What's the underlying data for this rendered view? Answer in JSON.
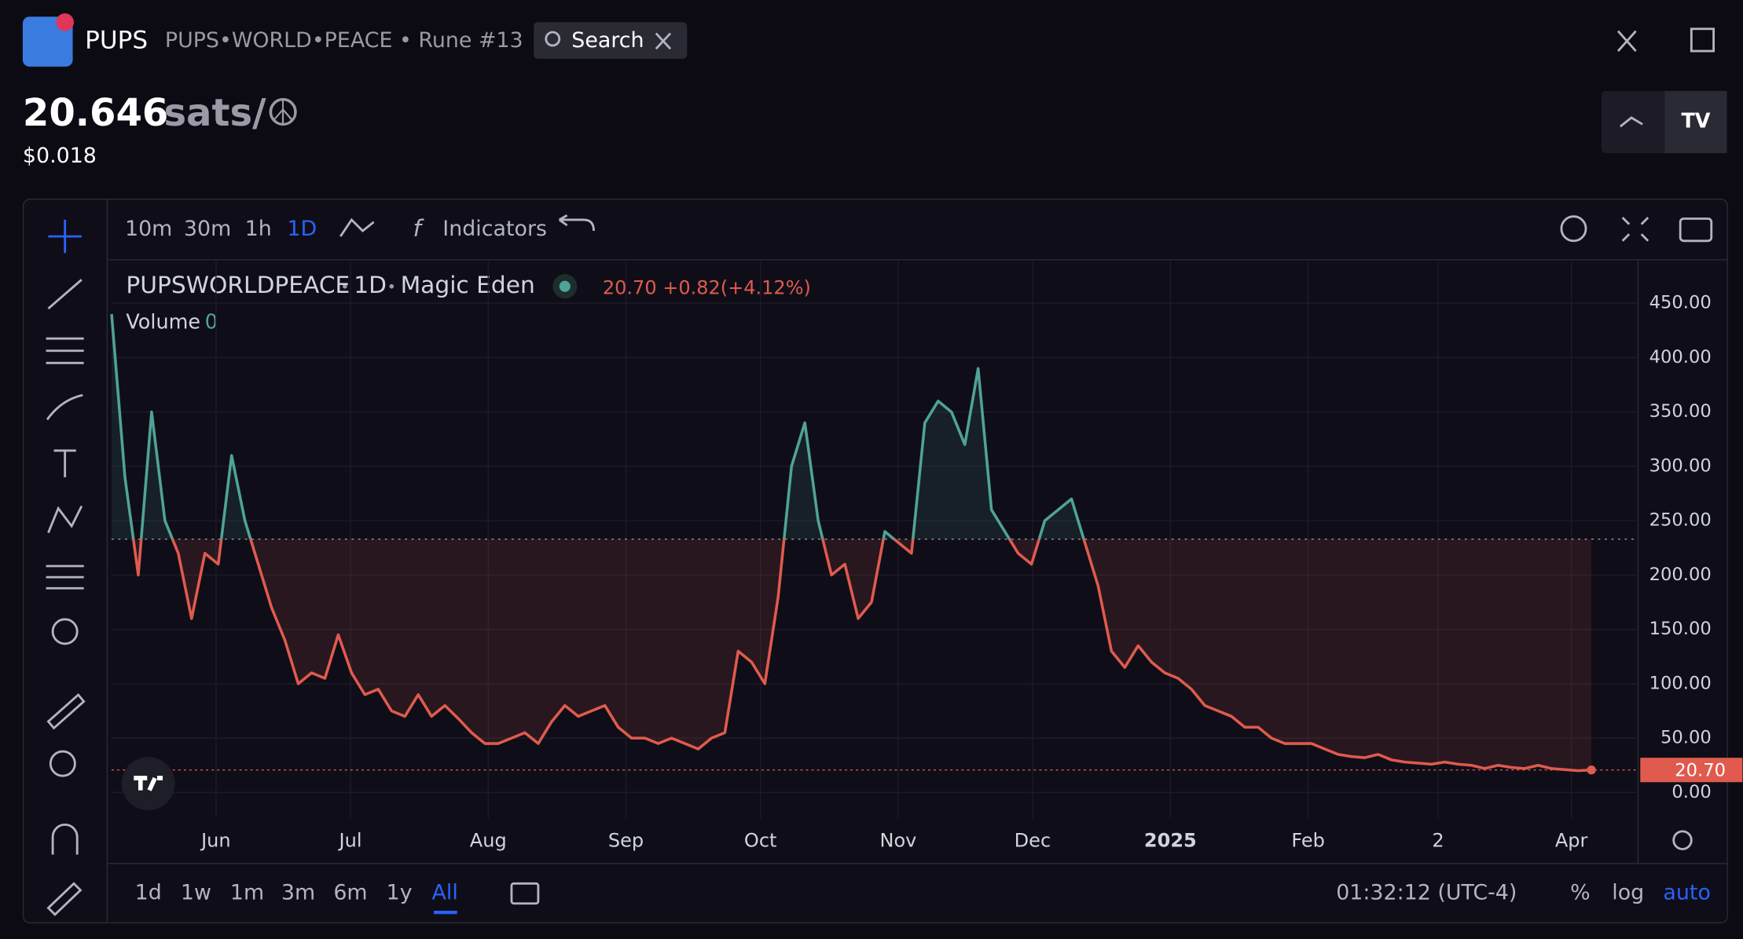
{
  "header": {
    "symbol": "PUPS",
    "name": "PUPS•WORLD•PEACE • Rune #13",
    "search": "Search",
    "price": "20.646",
    "unit": "sats/☮",
    "usd": "$0.018"
  },
  "toolbar": {
    "intervals": [
      "10m",
      "30m",
      "1h",
      "1D"
    ],
    "indicators": "Indicators"
  },
  "chart_data": {
    "type": "line",
    "legend": {
      "symbol": "PUPSWORLDPEACE",
      "interval": "1D",
      "exchange": "Magic Eden",
      "change": "+0.82",
      "change_pct": "(+4.12%)",
      "volume_label": "Volume",
      "volume": "0"
    },
    "values": [
      440,
      290,
      200,
      350,
      250,
      220,
      160,
      220,
      210,
      310,
      250,
      210,
      170,
      140,
      100,
      110,
      105,
      145,
      110,
      90,
      95,
      75,
      70,
      90,
      70,
      80,
      68,
      55,
      45,
      45,
      50,
      55,
      45,
      65,
      80,
      70,
      75,
      80,
      60,
      50,
      50,
      45,
      50,
      45,
      40,
      50,
      55,
      130,
      120,
      100,
      180,
      300,
      340,
      250,
      200,
      210,
      160,
      175,
      240,
      230,
      220,
      340,
      360,
      350,
      320,
      390,
      260,
      240,
      220,
      210,
      250,
      260,
      270,
      230,
      190,
      130,
      115,
      135,
      120,
      110,
      105,
      95,
      80,
      75,
      70,
      60,
      60,
      50,
      45,
      45,
      45,
      40,
      35,
      33,
      32,
      35,
      30,
      28,
      27,
      26,
      28,
      26,
      25,
      22,
      25,
      23,
      22,
      25,
      22,
      21,
      20,
      20.7
    ],
    "baseline": 233,
    "last_price": {
      "value": 20.7,
      "label": "20.70"
    },
    "colors": {
      "up": "#4fa397",
      "down": "#e05a4e"
    },
    "xlim": [
      0,
      114.5
    ],
    "xticks": [
      {
        "value": 7.83,
        "label": "Jun"
      },
      {
        "value": 17.92,
        "label": "Jul"
      },
      {
        "value": 28.25,
        "label": "Aug"
      },
      {
        "value": 38.58,
        "label": "Sep"
      },
      {
        "value": 48.67,
        "label": "Oct"
      },
      {
        "value": 59,
        "label": "Nov"
      },
      {
        "value": 69.08,
        "label": "Dec"
      },
      {
        "value": 79.42,
        "label": "2025"
      },
      {
        "value": 89.75,
        "label": "Feb"
      },
      {
        "value": 99.5,
        "label": "2"
      },
      {
        "value": 109.5,
        "label": "Apr"
      }
    ],
    "ylim": [
      -23.5,
      489
    ],
    "yticks": [
      {
        "value": 0,
        "label": "0.00"
      },
      {
        "value": 50,
        "label": "50.00"
      },
      {
        "value": 100,
        "label": "100.00"
      },
      {
        "value": 150,
        "label": "150.00"
      },
      {
        "value": 200,
        "label": "200.00"
      },
      {
        "value": 250,
        "label": "250.00"
      },
      {
        "value": 300,
        "label": "300.00"
      },
      {
        "value": 350,
        "label": "350.00"
      },
      {
        "value": 400,
        "label": "400.00"
      },
      {
        "value": 450,
        "label": "450.00"
      }
    ],
    "grid": true
  },
  "footer": {
    "ranges": [
      "1d",
      "1w",
      "1m",
      "3m",
      "6m",
      "1y",
      "All"
    ],
    "time": "01:32:12 (UTC-4)",
    "scale_options": [
      "%",
      "log",
      "auto"
    ]
  }
}
